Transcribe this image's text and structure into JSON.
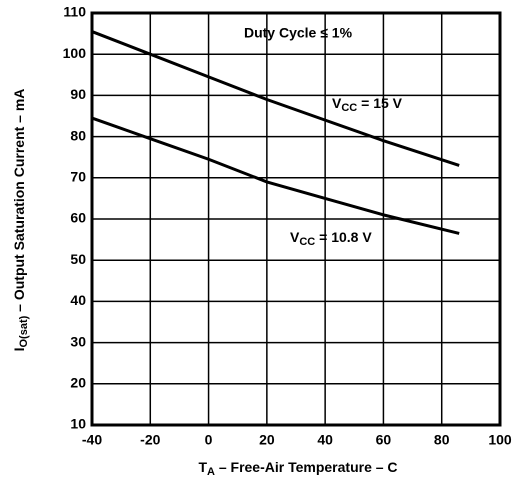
{
  "chart_data": {
    "type": "line",
    "x_label": [
      "T",
      "A",
      " – Free-Air Temperature – C"
    ],
    "y_label": [
      "I",
      "O(sat)",
      " – Output Saturation Current – mA"
    ],
    "annotation": "Duty Cycle ≤ 1%",
    "x": [
      -40,
      -20,
      0,
      20,
      40,
      60,
      86
    ],
    "series": [
      {
        "name": [
          "V",
          "CC",
          " = 15 V"
        ],
        "color": "#000000",
        "values": [
          105.5,
          100,
          94.5,
          89,
          84,
          79,
          73
        ]
      },
      {
        "name": [
          "V",
          "CC",
          " = 10.8 V"
        ],
        "color": "#000000",
        "values": [
          84.5,
          79.5,
          74.5,
          69,
          65,
          61,
          56.5
        ]
      }
    ],
    "xlim": [
      -40,
      100
    ],
    "xticks": [
      -40,
      -20,
      0,
      20,
      40,
      60,
      80,
      100
    ],
    "ylim": [
      10,
      110
    ],
    "yticks": [
      10,
      20,
      30,
      40,
      50,
      60,
      70,
      80,
      90,
      100,
      110
    ],
    "grid": true
  }
}
